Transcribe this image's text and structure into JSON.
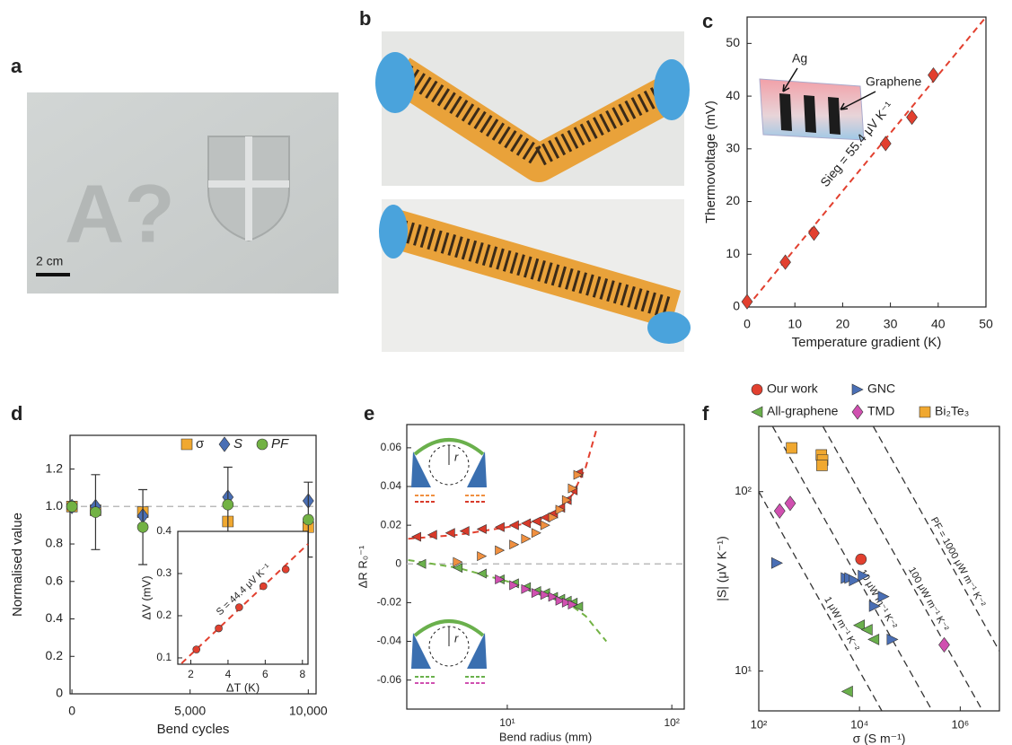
{
  "panels": {
    "a": {
      "label": "a",
      "photo_text": "A?",
      "scale_bar": "2 cm"
    },
    "b": {
      "label": "b"
    }
  },
  "chart_data": [
    {
      "panel_label": "c",
      "type": "scatter",
      "x_label": "Temperature gradient (K)",
      "y_label": "Thermovoltage (mV)",
      "xlim": [
        0,
        50
      ],
      "ylim": [
        0,
        55
      ],
      "xticks": [
        0,
        10,
        20,
        30,
        40,
        50
      ],
      "yticks": [
        0,
        10,
        20,
        30,
        40,
        50
      ],
      "series": [
        {
          "color": "#e2402f",
          "marker": "diamond",
          "x": [
            0,
            8,
            14,
            29,
            34.5,
            39
          ],
          "values": [
            1,
            8.5,
            14,
            31,
            36,
            44
          ]
        }
      ],
      "fit": {
        "color": "#e2402f",
        "x": [
          0,
          50
        ],
        "values": [
          0,
          55
        ]
      },
      "annotation": "Sieg = 55.4 μV K⁻¹",
      "inset_labels": [
        "Ag",
        "Graphene"
      ]
    },
    {
      "panel_label": "d",
      "type": "scatter",
      "x_label": "Bend cycles",
      "y_label": "Normalised value",
      "xlim": [
        -80,
        10330
      ],
      "ylim": [
        0,
        1.38
      ],
      "xticks": [
        0,
        {
          "value": 5000,
          "label": "5,000"
        },
        {
          "value": 10000,
          "label": "10,000"
        }
      ],
      "yticks": [
        0,
        0.2,
        0.4,
        0.6,
        0.8,
        {
          "value": 1,
          "label": "1.0"
        },
        1.2
      ],
      "reference_line": 1,
      "series": [
        {
          "name": "σ",
          "color": "#f0a830",
          "marker": "square",
          "x": [
            0,
            1000,
            3000,
            6600,
            10000
          ],
          "values": [
            1,
            0.98,
            0.97,
            0.92,
            0.89
          ]
        },
        {
          "name": "S",
          "color": "#4a6fb5",
          "marker": "diamond",
          "x": [
            0,
            1000,
            3000,
            6600,
            10000
          ],
          "values": [
            1,
            1,
            0.95,
            1.05,
            1.03
          ]
        },
        {
          "name": "PF",
          "color": "#72b244",
          "marker": "circle",
          "x": [
            0,
            1000,
            3000,
            6600,
            10000
          ],
          "values": [
            1,
            0.97,
            0.89,
            1.01,
            0.93
          ],
          "errors": [
            0,
            0.2,
            0.2,
            0.2,
            0.2
          ]
        }
      ],
      "inset": {
        "x_label": "ΔT (K)",
        "y_label": "ΔV (mV)",
        "xlim": [
          1.3,
          8.3
        ],
        "ylim": [
          0.085,
          0.4
        ],
        "xticks": [
          2,
          4,
          6,
          8
        ],
        "yticks": [
          0.1,
          0.2,
          0.3,
          0.4
        ],
        "series": [
          {
            "color": "#e2402f",
            "marker": "circle",
            "x": [
              2.3,
              3.5,
              4.6,
              5.9,
              7.1
            ],
            "values": [
              0.12,
              0.17,
              0.22,
              0.27,
              0.31
            ]
          }
        ],
        "fit": {
          "color": "#e2402f",
          "x": [
            1.5,
            8.3
          ],
          "values": [
            0.087,
            0.37
          ]
        },
        "annotation": "S = 44.4 μV K⁻¹"
      }
    },
    {
      "panel_label": "e",
      "type": "scatter",
      "x_label": "Bend radius (mm)",
      "y_label": "ΔR R₀⁻¹",
      "xlog": true,
      "xlim": [
        2.45,
        119
      ],
      "ylim": [
        -0.075,
        0.072
      ],
      "xticks": [
        {
          "value": 10,
          "label": "10¹"
        },
        {
          "value": 100,
          "label": "10²"
        }
      ],
      "yticks": [
        0.06,
        0.04,
        0.02,
        0,
        -0.02,
        -0.04,
        -0.06
      ],
      "reference_line": 0,
      "series": [
        {
          "color": "#d83a2a",
          "marker": "tri-left",
          "x": [
            2.8,
            3.5,
            4.5,
            5.5,
            7,
            9,
            11,
            13,
            15,
            17,
            19,
            21,
            23,
            25,
            27
          ],
          "values": [
            0.014,
            0.015,
            0.016,
            0.017,
            0.018,
            0.019,
            0.02,
            0.021,
            0.022,
            0.024,
            0.026,
            0.029,
            0.033,
            0.038,
            0.047
          ]
        },
        {
          "color": "#f09040",
          "marker": "tri-right",
          "x": [
            5,
            7,
            9,
            11,
            13,
            15,
            17,
            19,
            21,
            23,
            25,
            27
          ],
          "values": [
            0.001,
            0.004,
            0.007,
            0.01,
            0.013,
            0.016,
            0.02,
            0.024,
            0.028,
            0.033,
            0.039,
            0.046
          ]
        },
        {
          "color": "#6ab04c",
          "marker": "tri-left",
          "x": [
            3,
            5,
            7,
            9,
            11,
            13,
            15,
            17,
            19,
            21,
            23,
            25,
            27
          ],
          "values": [
            0,
            -0.002,
            -0.005,
            -0.008,
            -0.01,
            -0.012,
            -0.014,
            -0.015,
            -0.017,
            -0.018,
            -0.019,
            -0.02,
            -0.022
          ]
        },
        {
          "color": "#d050b0",
          "marker": "tri-right",
          "x": [
            9,
            11,
            13,
            15,
            17,
            19,
            21,
            23,
            25
          ],
          "values": [
            -0.008,
            -0.011,
            -0.013,
            -0.015,
            -0.016,
            -0.017,
            -0.019,
            -0.02,
            -0.021
          ]
        }
      ],
      "fits": [
        {
          "color": "#e2402f",
          "x": [
            2.5,
            5,
            10,
            15,
            20,
            25,
            30,
            35
          ],
          "values": [
            0.013,
            0.015,
            0.019,
            0.022,
            0.027,
            0.036,
            0.05,
            0.07
          ]
        },
        {
          "color": "#72b244",
          "x": [
            2.5,
            5,
            10,
            15,
            20,
            25,
            30,
            40
          ],
          "values": [
            0.002,
            -0.002,
            -0.009,
            -0.014,
            -0.018,
            -0.022,
            -0.027,
            -0.04
          ]
        }
      ],
      "inset_labels": [
        "r",
        "r"
      ]
    },
    {
      "panel_label": "f",
      "type": "scatter",
      "x_label": "σ (S m⁻¹)",
      "y_label": "|S| (μV K⁻¹)",
      "xlog": true,
      "ylog": true,
      "xlim": [
        100,
        6000000
      ],
      "ylim": [
        6,
        231
      ],
      "xticks": [
        {
          "value": 100,
          "label": "10²"
        },
        {
          "value": 10000,
          "label": "10⁴"
        },
        {
          "value": 1000000,
          "label": "10⁶"
        }
      ],
      "yticks": [
        {
          "value": 10,
          "label": "10¹"
        },
        {
          "value": 100,
          "label": "10²"
        }
      ],
      "series": [
        {
          "name": "Our work",
          "color": "#e2402f",
          "marker": "circle",
          "x": [
            10700
          ],
          "values": [
            42
          ]
        },
        {
          "name": "GNC",
          "color": "#4a6fb5",
          "marker": "tri-right",
          "x": [
            230,
            5500,
            6500,
            8000,
            12000,
            20000,
            30000,
            45000
          ],
          "values": [
            40,
            33,
            33,
            32,
            34,
            23,
            26,
            15
          ]
        },
        {
          "name": "All-graphene",
          "color": "#6ab04c",
          "marker": "tri-left",
          "x": [
            5700,
            9800,
            14000,
            19000
          ],
          "values": [
            7.7,
            18,
            17,
            15
          ]
        },
        {
          "name": "TMD",
          "color": "#d050b0",
          "marker": "diamond",
          "x": [
            260,
            420,
            480000
          ],
          "values": [
            78,
            86,
            14
          ]
        },
        {
          "name": "Bi₂Te₃",
          "color": "#f0a830",
          "marker": "square",
          "x": [
            450,
            1750,
            1850,
            1800
          ],
          "values": [
            175,
            160,
            150,
            140
          ]
        }
      ],
      "pf_lines": [
        {
          "value": 1,
          "label": "1 μW m⁻¹ K⁻²"
        },
        {
          "value": 10,
          "label": "10 μW m⁻¹ K⁻²"
        },
        {
          "value": 100,
          "label": "100 μW m⁻¹ K⁻²"
        },
        {
          "value": 1000,
          "label": "PF = 1000 μW m⁻¹ K⁻²"
        }
      ]
    }
  ]
}
